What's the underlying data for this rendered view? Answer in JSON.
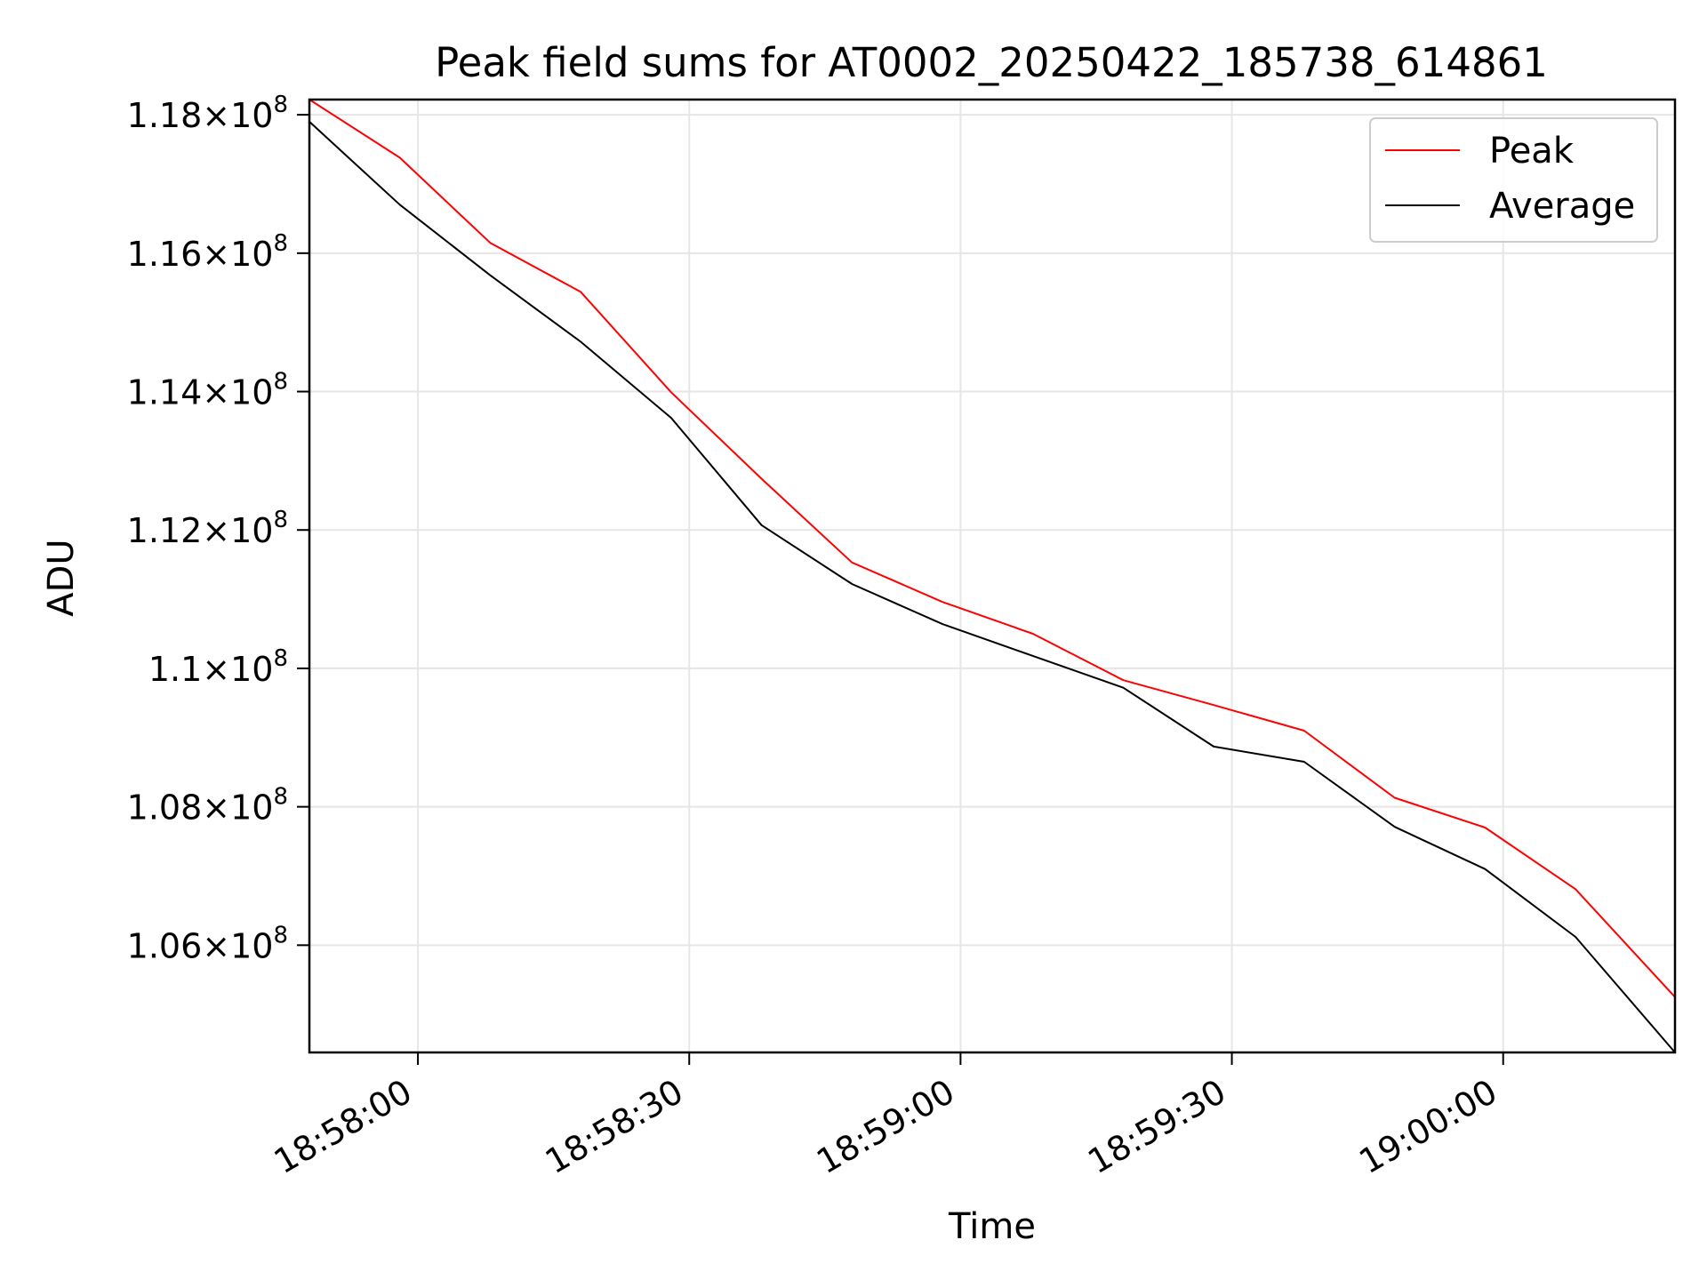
{
  "chart_data": {
    "type": "line",
    "title": "Peak field sums for AT0002_20250422_185738_614861",
    "xlabel": "Time",
    "ylabel": "ADU",
    "x": [
      "18:57:48",
      "18:57:58",
      "18:58:08",
      "18:58:18",
      "18:58:28",
      "18:58:38",
      "18:58:48",
      "18:58:58",
      "18:59:08",
      "18:59:18",
      "18:59:28",
      "18:59:38",
      "18:59:48",
      "18:59:58",
      "19:00:08",
      "19:00:19"
    ],
    "xlim": [
      "18:57:48",
      "19:00:19"
    ],
    "ylim": [
      104450000,
      118220000
    ],
    "xticks": [
      "18:58:00",
      "18:58:30",
      "18:59:00",
      "18:59:30",
      "19:00:00"
    ],
    "yticks": [
      {
        "value": 106000000,
        "mantissa": "1.06",
        "exp": "8"
      },
      {
        "value": 108000000,
        "mantissa": "1.08",
        "exp": "8"
      },
      {
        "value": 110000000,
        "mantissa": "1.1",
        "exp": "8"
      },
      {
        "value": 112000000,
        "mantissa": "1.12",
        "exp": "8"
      },
      {
        "value": 114000000,
        "mantissa": "1.14",
        "exp": "8"
      },
      {
        "value": 116000000,
        "mantissa": "1.16",
        "exp": "8"
      },
      {
        "value": 118000000,
        "mantissa": "1.18",
        "exp": "8"
      }
    ],
    "times_symbol": "×",
    "tick_base": "10",
    "grid": true,
    "legend_position": "top-right",
    "series": [
      {
        "name": "Peak",
        "color": "#ff0000",
        "values": [
          118220000,
          117380000,
          116150000,
          115440000,
          113990000,
          112740000,
          111530000,
          110960000,
          110500000,
          109830000,
          109470000,
          109100000,
          108130000,
          107700000,
          106810000,
          105250000
        ]
      },
      {
        "name": "Average",
        "color": "#000000",
        "values": [
          117900000,
          116700000,
          115680000,
          114720000,
          113620000,
          112070000,
          111220000,
          110640000,
          110180000,
          109720000,
          108870000,
          108650000,
          107710000,
          107100000,
          106120000,
          104450000
        ]
      }
    ]
  }
}
